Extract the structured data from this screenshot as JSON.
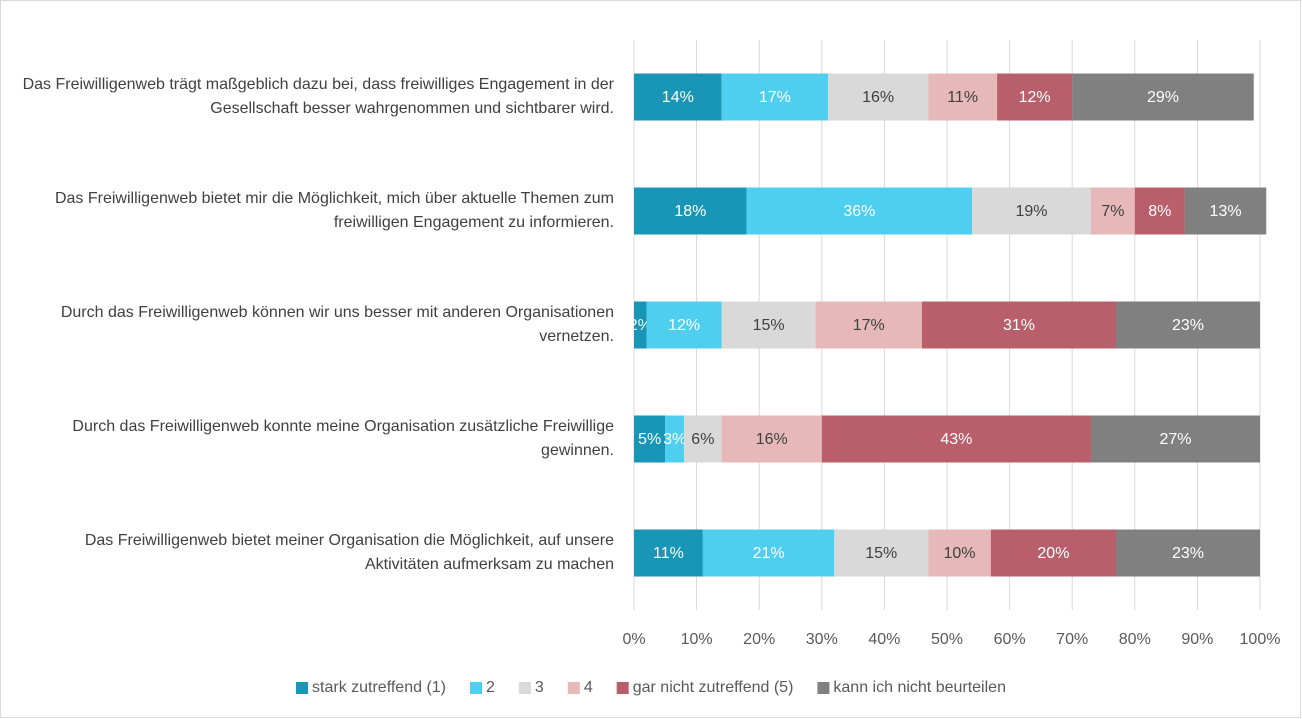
{
  "chart_data": {
    "type": "stacked-bar-horizontal",
    "categories": [
      "Das Freiwilligenweb trägt maßgeblich dazu bei, dass freiwilliges Engagement in der Gesellschaft besser wahrgenommen und sichtbarer wird.",
      "Das Freiwilligenweb bietet mir die Möglichkeit, mich über aktuelle Themen zum freiwilligen Engagement zu informieren.",
      "Durch das Freiwilligenweb können wir uns besser mit anderen Organisationen vernetzen.",
      "Durch das Freiwilligenweb konnte meine Organisation zusätzliche Freiwillige gewinnen.",
      "Das Freiwilligenweb bietet meiner Organisation die Möglichkeit, auf unsere Aktivitäten aufmerksam zu machen"
    ],
    "series": [
      {
        "name": "stark zutreffend (1)",
        "color": "#1996b6",
        "values": [
          14,
          18,
          2,
          5,
          11
        ],
        "value_labels": [
          "14%",
          "18%",
          "2%",
          "5%",
          "11%"
        ]
      },
      {
        "name": "2",
        "color": "#4fcff0",
        "values": [
          17,
          36,
          12,
          3,
          21
        ],
        "value_labels": [
          "17%",
          "36%",
          "12%",
          "3%",
          "21%"
        ]
      },
      {
        "name": "3",
        "color": "#d9d9d9",
        "values": [
          16,
          19,
          15,
          6,
          15
        ],
        "value_labels": [
          "16%",
          "19%",
          "15%",
          "6%",
          "15%"
        ]
      },
      {
        "name": "4",
        "color": "#e6b9b8",
        "values": [
          11,
          7,
          17,
          16,
          10
        ],
        "value_labels": [
          "11%",
          "7%",
          "17%",
          "16%",
          "10%"
        ]
      },
      {
        "name": "gar nicht zutreffend (5)",
        "color": "#b85f6b",
        "values": [
          12,
          8,
          31,
          43,
          20
        ],
        "value_labels": [
          "12%",
          "8%",
          "31%",
          "43%",
          "20%"
        ]
      },
      {
        "name": "kann ich nicht beurteilen",
        "color": "#808080",
        "values": [
          29,
          13,
          23,
          27,
          23
        ],
        "value_labels": [
          "29%",
          "13%",
          "23%",
          "27%",
          "23%"
        ]
      }
    ],
    "xlim": [
      0,
      100
    ],
    "xticks": [
      {
        "value": 0,
        "label": "0%"
      },
      {
        "value": 10,
        "label": "10%"
      },
      {
        "value": 20,
        "label": "20%"
      },
      {
        "value": 30,
        "label": "30%"
      },
      {
        "value": 40,
        "label": "40%"
      },
      {
        "value": 50,
        "label": "50%"
      },
      {
        "value": 60,
        "label": "60%"
      },
      {
        "value": 70,
        "label": "70%"
      },
      {
        "value": 80,
        "label": "80%"
      },
      {
        "value": 90,
        "label": "90%"
      },
      {
        "value": 100,
        "label": "100%"
      }
    ],
    "grid": true,
    "legend": "bottom"
  }
}
